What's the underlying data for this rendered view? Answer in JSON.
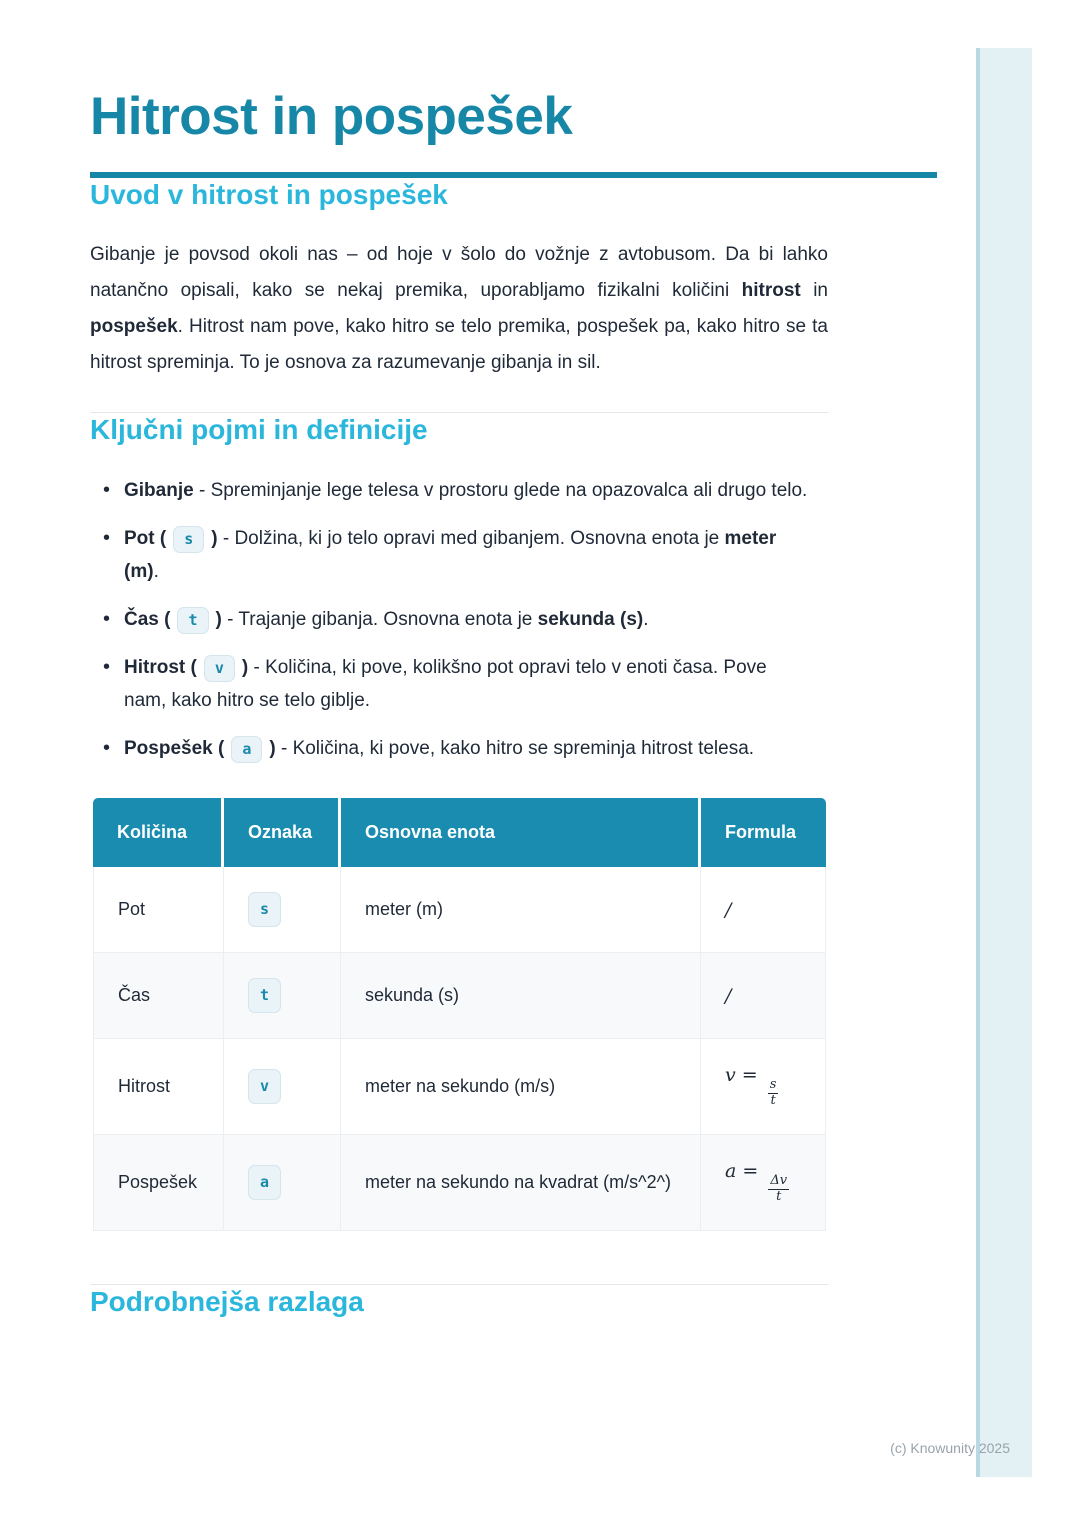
{
  "page": {
    "title": "Hitrost in pospešek",
    "copyright": "(c) Knowunity 2025"
  },
  "colors": {
    "title_teal": "#1787a8",
    "heading_cyan": "#2bb7dc",
    "table_header_teal": "#1a8caf",
    "badge_text": "#1a8aab",
    "badge_bg": "#e9f3f8",
    "side_strip": "#e3f1f5",
    "body_text": "#1f2937"
  },
  "intro": {
    "heading": "Uvod v hitrost in pospešek",
    "paragraph": [
      {
        "text": "Gibanje je povsod okoli nas – od hoje v šolo do vožnje z avtobusom. Da bi lahko natančno opisali, kako se nekaj premika, uporabljamo fizikalni količini ",
        "bold": false
      },
      {
        "text": "hitrost",
        "bold": true
      },
      {
        "text": " in ",
        "bold": false
      },
      {
        "text": "pospešek",
        "bold": true
      },
      {
        "text": ". Hitrost nam pove, kako hitro se telo premika, pospešek pa, kako hitro se ta hitrost spreminja. To je osnova za razumevanje gibanja in sil.",
        "bold": false
      }
    ]
  },
  "concepts": {
    "heading": "Ključni pojmi in definicije",
    "items": [
      {
        "segments": [
          {
            "text": "Gibanje",
            "bold": true
          },
          {
            "text": " - Spreminjanje lege telesa v prostoru glede na opazovalca ali drugo telo.",
            "bold": false
          }
        ]
      },
      {
        "segments": [
          {
            "text": "Pot (",
            "bold": true
          },
          {
            "code": "s"
          },
          {
            "text": ")",
            "bold": true
          },
          {
            "text": " - Dolžina, ki jo telo opravi med gibanjem. Osnovna enota je ",
            "bold": false
          },
          {
            "text": "meter (m)",
            "bold": true
          },
          {
            "text": ".",
            "bold": false
          }
        ]
      },
      {
        "segments": [
          {
            "text": "Čas (",
            "bold": true
          },
          {
            "code": "t"
          },
          {
            "text": ")",
            "bold": true
          },
          {
            "text": " - Trajanje gibanja. Osnovna enota je ",
            "bold": false
          },
          {
            "text": "sekunda (s)",
            "bold": true
          },
          {
            "text": ".",
            "bold": false
          }
        ]
      },
      {
        "segments": [
          {
            "text": "Hitrost (",
            "bold": true
          },
          {
            "code": "v"
          },
          {
            "text": ")",
            "bold": true
          },
          {
            "text": " - Količina, ki pove, kolikšno pot opravi telo v enoti časa. Pove nam, kako hitro se telo giblje.",
            "bold": false
          }
        ]
      },
      {
        "segments": [
          {
            "text": "Pospešek (",
            "bold": true
          },
          {
            "code": "a"
          },
          {
            "text": ")",
            "bold": true
          },
          {
            "text": " - Količina, ki pove, kako hitro se spreminja hitrost telesa.",
            "bold": false
          }
        ]
      }
    ]
  },
  "table": {
    "headers": [
      "Količina",
      "Oznaka",
      "Osnovna enota",
      "Formula"
    ],
    "rows": [
      {
        "quantity": "Pot",
        "symbol": "s",
        "unit": "meter (m)",
        "formula": {
          "type": "none",
          "text": "/"
        }
      },
      {
        "quantity": "Čas",
        "symbol": "t",
        "unit": "sekunda (s)",
        "formula": {
          "type": "none",
          "text": "/"
        }
      },
      {
        "quantity": "Hitrost",
        "symbol": "v",
        "unit": "meter na sekundo (m/s)",
        "formula": {
          "type": "fraction",
          "lhs": "v",
          "num": "s",
          "den": "t"
        }
      },
      {
        "quantity": "Pospešek",
        "symbol": "a",
        "unit": "meter na sekundo na kvadrat (m/s^2^)",
        "formula": {
          "type": "fraction",
          "lhs": "a",
          "num": "Δv",
          "den": "t"
        }
      }
    ]
  },
  "next_section": {
    "heading": "Podrobnejša razlaga"
  }
}
